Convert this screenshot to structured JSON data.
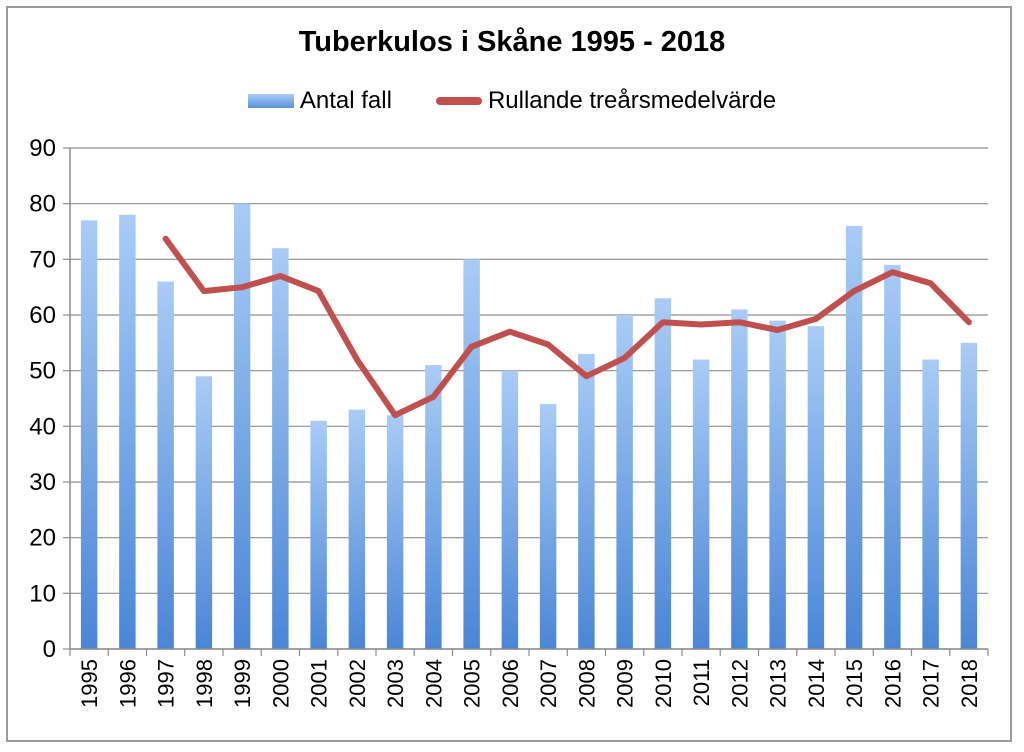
{
  "chart_data": {
    "type": "bar",
    "title": "Tuberkulos i Skåne 1995 - 2018",
    "categories": [
      "1995",
      "1996",
      "1997",
      "1998",
      "1999",
      "2000",
      "2001",
      "2002",
      "2003",
      "2004",
      "2005",
      "2006",
      "2007",
      "2008",
      "2009",
      "2010",
      "2011",
      "2012",
      "2013",
      "2014",
      "2015",
      "2016",
      "2017",
      "2018"
    ],
    "series": [
      {
        "name": "Antal fall",
        "type": "bar",
        "color": "#5b9bd5",
        "values": [
          77,
          78,
          66,
          49,
          80,
          72,
          41,
          43,
          42,
          51,
          70,
          50,
          44,
          53,
          60,
          63,
          52,
          61,
          59,
          58,
          76,
          69,
          52,
          55
        ]
      },
      {
        "name": "Rullande treårsmedelvärde",
        "type": "line",
        "color": "#c0504d",
        "values": [
          null,
          null,
          73.7,
          64.3,
          65.0,
          67.0,
          64.3,
          52.0,
          42.0,
          45.3,
          54.3,
          57.0,
          54.7,
          49.0,
          52.3,
          58.7,
          58.3,
          58.7,
          57.3,
          59.3,
          64.3,
          67.7,
          65.7,
          58.7
        ]
      }
    ],
    "ylim": [
      0,
      90
    ],
    "yticks": [
      "0",
      "10",
      "20",
      "30",
      "40",
      "50",
      "60",
      "70",
      "80",
      "90"
    ],
    "grid": true,
    "legend": "top"
  }
}
